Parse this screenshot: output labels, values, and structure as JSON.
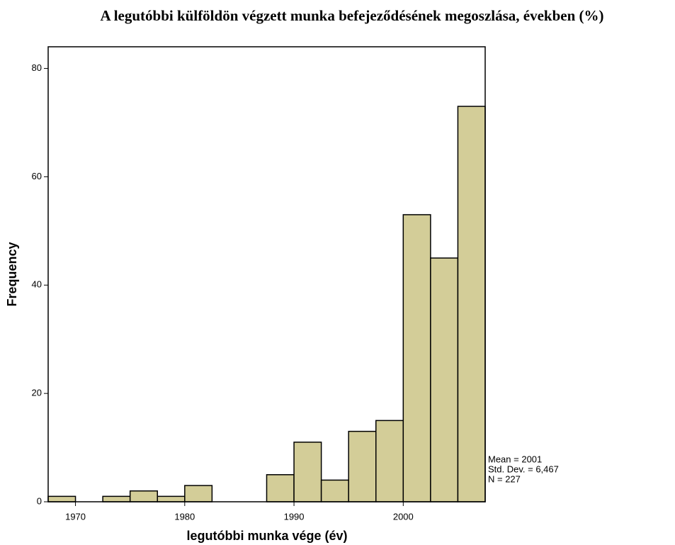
{
  "chart_data": {
    "type": "histogram",
    "title": "A legutóbbi külföldön végzett munka befejeződésének megoszlása, években (%)",
    "xlabel": "legutóbbi munka vége (év)",
    "ylabel": "Frequency",
    "bins": [
      1967.5,
      1970,
      1972.5,
      1975,
      1977.5,
      1980,
      1982.5,
      1985,
      1987.5,
      1990,
      1992.5,
      1995,
      1997.5,
      2000,
      2002.5,
      2005,
      2007.5
    ],
    "values": [
      1,
      0,
      1,
      2,
      1,
      3,
      0,
      0,
      5,
      11,
      4,
      13,
      15,
      53,
      45,
      73
    ],
    "color": "#d3cd98",
    "xlim": [
      1967.5,
      2007.5
    ],
    "xticks": [
      1970,
      1980,
      1990,
      2000
    ],
    "ylim": [
      0,
      84
    ],
    "yticks": [
      0,
      20,
      40,
      60,
      80
    ],
    "annotations": [
      "Mean = 2001",
      "Std. Dev. = 6,467",
      "N = 227"
    ]
  }
}
